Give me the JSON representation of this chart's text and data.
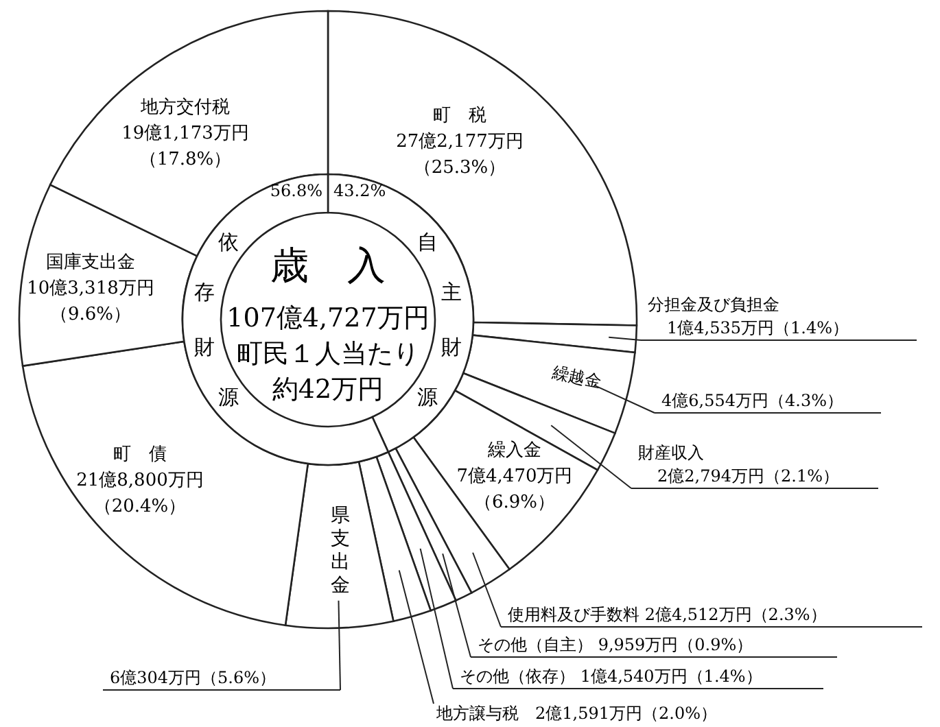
{
  "chart_data": [
    {
      "type": "donut",
      "title": "歳　入",
      "annotations": [
        "107億4,727万円",
        "町民１人当たり",
        "約42万円"
      ],
      "categories": [
        "町　税",
        "分担金及び負担金",
        "繰越金",
        "財産収入",
        "繰入金",
        "使用料及び手数料",
        "その他（自主）",
        "その他（依存）",
        "地方譲与税",
        "県支出金",
        "町　債",
        "国庫支出金",
        "地方交付税"
      ],
      "values": [
        25.3,
        1.4,
        4.3,
        2.1,
        6.9,
        2.3,
        0.9,
        1.4,
        2.0,
        5.6,
        20.4,
        9.6,
        17.8
      ],
      "value_labels": [
        "27億2,177万円（25.3%）",
        "1億4,535万円（1.4%）",
        "4億6,554万円（4.3%）",
        "2億2,794万円（2.1%）",
        "7億4,470万円（6.9%）",
        "2億4,512万円（2.3%）",
        "9,959万円（0.9%）",
        "1億4,540万円（1.4%）",
        "2億1,591万円（2.0%）",
        "6億304万円（5.6%）",
        "21億8,800万円（20.4%）",
        "10億3,318万円（9.6%）",
        "19億1,173万円（17.8%）"
      ],
      "colors": [
        "#ffffff",
        "#ffffff",
        "#ffffff",
        "#ffffff",
        "#ffffff",
        "#ffffff",
        "#ffffff",
        "#ffffff",
        "#ffffff",
        "#ffffff",
        "#ffffff",
        "#ffffff",
        "#ffffff"
      ]
    },
    {
      "type": "donut",
      "categories": [
        "自主財源",
        "依存財源"
      ],
      "values": [
        43.2,
        56.8
      ],
      "value_labels": [
        "43.2%",
        "56.8%"
      ],
      "colors": [
        "#ffffff",
        "#ffffff"
      ]
    }
  ]
}
